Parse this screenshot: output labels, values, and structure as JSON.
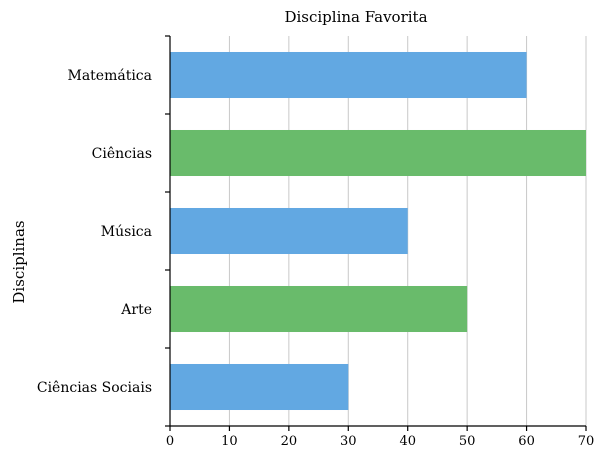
{
  "chart_data": {
    "type": "bar",
    "orientation": "horizontal",
    "title": "Disciplina Favorita",
    "ylabel": "Disciplinas",
    "xlabel": "",
    "categories": [
      "Matemática",
      "Ciências",
      "Música",
      "Arte",
      "Ciências Sociais"
    ],
    "values": [
      60,
      70,
      40,
      50,
      30
    ],
    "bar_colors": [
      "#62a8e2",
      "#69bb6b",
      "#62a8e2",
      "#69bb6b",
      "#62a8e2"
    ],
    "xlim": [
      0,
      70
    ],
    "xticks": [
      0,
      10,
      20,
      30,
      40,
      50,
      60,
      70
    ],
    "grid": "vertical"
  }
}
